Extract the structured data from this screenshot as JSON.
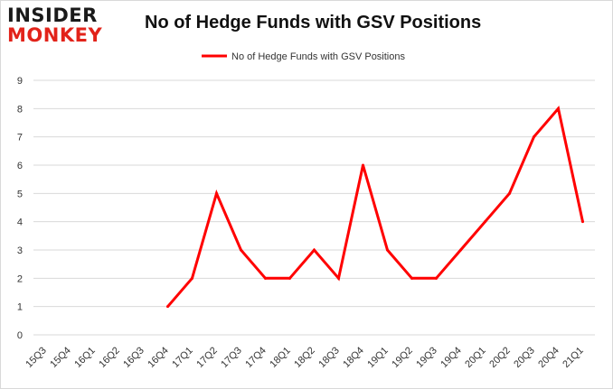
{
  "logo": {
    "line1": "INSIDER",
    "line2": "MONKEY"
  },
  "chart_data": {
    "type": "line",
    "title": "No of Hedge Funds with GSV Positions",
    "xlabel": "",
    "ylabel": "",
    "categories": [
      "15Q3",
      "15Q4",
      "16Q1",
      "16Q2",
      "16Q3",
      "16Q4",
      "17Q1",
      "17Q2",
      "17Q3",
      "17Q4",
      "18Q1",
      "18Q2",
      "18Q3",
      "18Q4",
      "19Q1",
      "19Q2",
      "19Q3",
      "19Q4",
      "20Q1",
      "20Q2",
      "20Q3",
      "20Q4",
      "21Q1"
    ],
    "series": [
      {
        "name": "No of Hedge Funds with GSV Positions",
        "color": "#ff0000",
        "values": [
          null,
          null,
          null,
          null,
          null,
          1,
          2,
          5,
          3,
          2,
          2,
          3,
          2,
          6,
          3,
          2,
          2,
          3,
          4,
          5,
          7,
          8,
          4
        ]
      }
    ],
    "yticks": [
      0,
      1,
      2,
      3,
      4,
      5,
      6,
      7,
      8,
      9
    ],
    "ylim": [
      0,
      9
    ],
    "grid": true,
    "legend_position": "top-center"
  }
}
